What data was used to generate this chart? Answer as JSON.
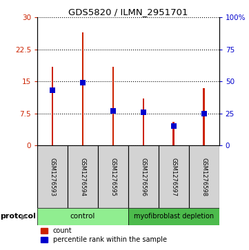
{
  "title": "GDS5820 / ILMN_2951701",
  "samples": [
    "GSM1276593",
    "GSM1276594",
    "GSM1276595",
    "GSM1276596",
    "GSM1276597",
    "GSM1276598"
  ],
  "counts": [
    18.5,
    26.5,
    18.5,
    11.0,
    5.5,
    13.5
  ],
  "percentile_ranks": [
    43,
    49,
    27,
    26,
    15,
    25
  ],
  "groups": [
    "control",
    "control",
    "control",
    "myofibroblast depletion",
    "myofibroblast depletion",
    "myofibroblast depletion"
  ],
  "bar_color": "#CC2200",
  "percentile_color": "#0000CC",
  "ylim_left": [
    0,
    30
  ],
  "ylim_right": [
    0,
    100
  ],
  "yticks_left": [
    0,
    7.5,
    15,
    22.5,
    30
  ],
  "yticks_right": [
    0,
    25,
    50,
    75,
    100
  ],
  "ytick_labels_left": [
    "0",
    "7.5",
    "15",
    "22.5",
    "30"
  ],
  "ytick_labels_right": [
    "0",
    "25",
    "50",
    "75",
    "100%"
  ],
  "ylabel_left_color": "#CC2200",
  "ylabel_right_color": "#0000CC",
  "bar_width": 0.06,
  "bg_color_plot": "#FFFFFF",
  "bg_color_sample": "#D3D3D3",
  "control_color": "#90EE90",
  "myofib_color": "#4CBB4C",
  "legend_count_label": "count",
  "legend_percentile_label": "percentile rank within the sample",
  "protocol_label": "protocol"
}
